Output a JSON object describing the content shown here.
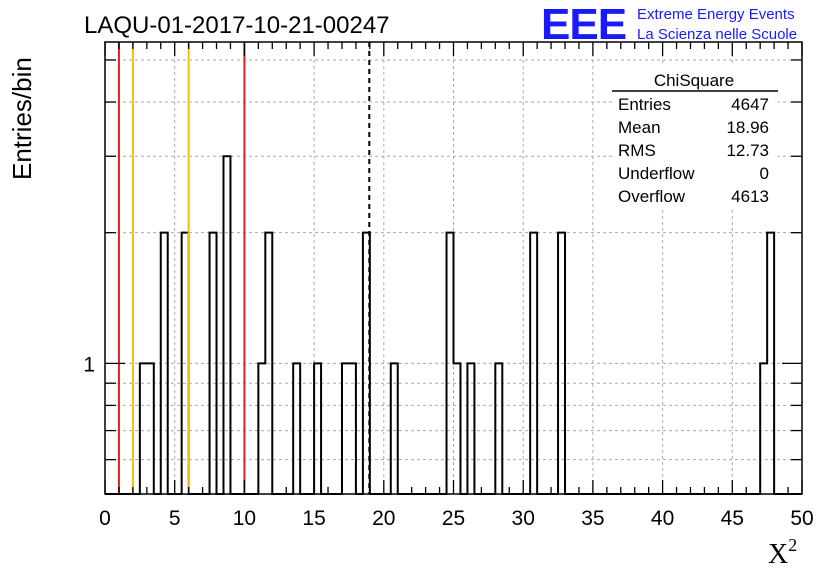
{
  "chart_data": {
    "type": "bar",
    "title": "LAQU-01-2017-10-21-00247",
    "xlabel": "X",
    "xlabel_sup": "2",
    "ylabel": "Entries/bin",
    "xlim": [
      0,
      50
    ],
    "ylim": [
      0.5,
      5.5
    ],
    "y_scale": "log",
    "x_ticks": [
      0,
      5,
      10,
      15,
      20,
      25,
      30,
      35,
      40,
      45,
      50
    ],
    "x_tick_labels": [
      "0",
      "5",
      "10",
      "15",
      "20",
      "25",
      "30",
      "35",
      "40",
      "45",
      "50"
    ],
    "y_tick_labels": [
      {
        "value": 1,
        "label": "1"
      }
    ],
    "grid": true,
    "bin_width": 0.5,
    "bins": [
      {
        "x": 2.5,
        "y": 1
      },
      {
        "x": 3.0,
        "y": 1
      },
      {
        "x": 4.0,
        "y": 2
      },
      {
        "x": 5.5,
        "y": 2
      },
      {
        "x": 7.5,
        "y": 2
      },
      {
        "x": 8.5,
        "y": 3
      },
      {
        "x": 11.0,
        "y": 1
      },
      {
        "x": 11.5,
        "y": 2
      },
      {
        "x": 13.5,
        "y": 1
      },
      {
        "x": 15.0,
        "y": 1
      },
      {
        "x": 17.0,
        "y": 1
      },
      {
        "x": 17.5,
        "y": 1
      },
      {
        "x": 18.5,
        "y": 2
      },
      {
        "x": 20.5,
        "y": 1
      },
      {
        "x": 24.5,
        "y": 2
      },
      {
        "x": 25.0,
        "y": 1
      },
      {
        "x": 26.0,
        "y": 1
      },
      {
        "x": 28.0,
        "y": 1
      },
      {
        "x": 30.5,
        "y": 2
      },
      {
        "x": 32.5,
        "y": 2
      },
      {
        "x": 47.0,
        "y": 1
      },
      {
        "x": 47.5,
        "y": 2
      }
    ],
    "vertical_lines": [
      {
        "x": 1.0,
        "color": "#dd2222",
        "style": "solid"
      },
      {
        "x": 2.0,
        "color": "#f5c000",
        "style": "solid"
      },
      {
        "x": 6.0,
        "color": "#f5c000",
        "style": "solid"
      },
      {
        "x": 10.0,
        "color": "#dd2222",
        "style": "solid"
      },
      {
        "x": 18.96,
        "color": "#000000",
        "style": "dashed"
      }
    ],
    "stats_box": {
      "title": "ChiSquare",
      "rows": [
        {
          "label": "Entries",
          "value": "4647"
        },
        {
          "label": "Mean",
          "value": "18.96"
        },
        {
          "label": "RMS",
          "value": "12.73"
        },
        {
          "label": "Underflow",
          "value": "0"
        },
        {
          "label": "Overflow",
          "value": "4613"
        }
      ]
    }
  },
  "logo": {
    "text": "EEE",
    "line1": "Extreme Energy Events",
    "line2": "La Scienza nelle Scuole",
    "color": "#1a1aff"
  }
}
